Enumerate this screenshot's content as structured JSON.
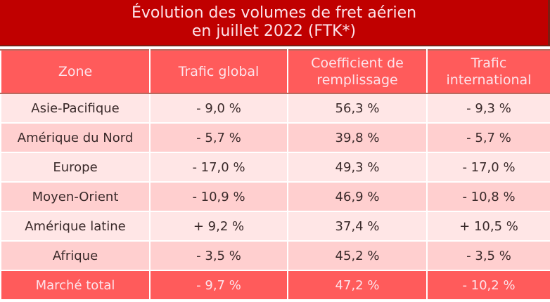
{
  "title": {
    "line1": "Évolution des volumes de fret aérien",
    "line2": "en juillet 2022 (FTK*)"
  },
  "colors": {
    "title_bg": "#c00000",
    "header_bg": "#ff5b5b",
    "row_light": "#ffe6e6",
    "row_dark": "#ffcfcf",
    "total_bg": "#ff5b5b"
  },
  "table": {
    "headers": [
      "Zone",
      "Trafic global",
      "Coefficient de remplissage",
      "Trafic international"
    ],
    "rows": [
      [
        "Asie-Pacifique",
        "- 9,0 %",
        "56,3 %",
        "- 9,3 %"
      ],
      [
        "Amérique du Nord",
        "- 5,7 %",
        "39,8 %",
        "- 5,7 %"
      ],
      [
        "Europe",
        "- 17,0 %",
        "49,3 %",
        "- 17,0 %"
      ],
      [
        "Moyen-Orient",
        "- 10,9 %",
        "46,9 %",
        "- 10,8 %"
      ],
      [
        "Amérique latine",
        "+ 9,2 %",
        "37,4 %",
        "+ 10,5 %"
      ],
      [
        "Afrique",
        "- 3,5 %",
        "45,2 %",
        "- 3,5 %"
      ]
    ],
    "total": [
      "Marché total",
      "- 9,7 %",
      "47,2 %",
      "- 10,2 %"
    ]
  }
}
